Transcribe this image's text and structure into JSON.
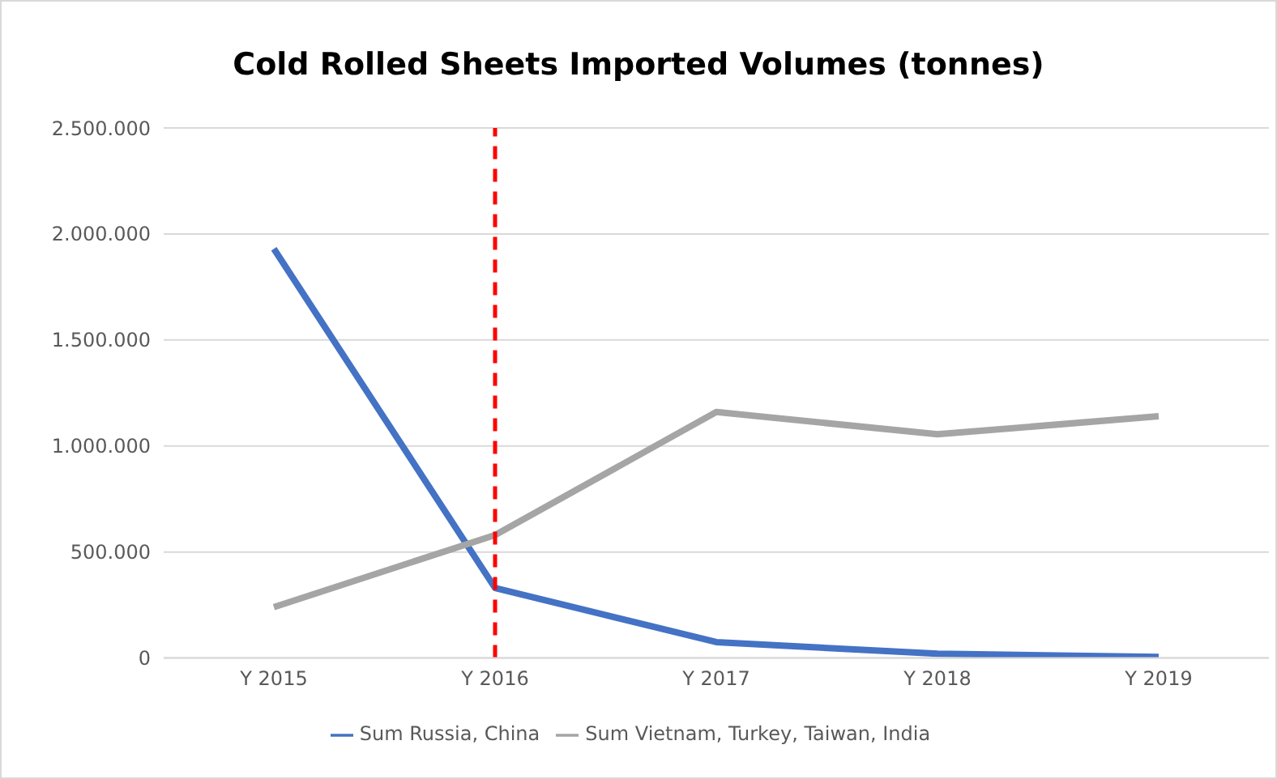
{
  "chart_data": {
    "type": "line",
    "title": "Cold Rolled Sheets Imported Volumes (tonnes)",
    "categories": [
      "Y 2015",
      "Y 2016",
      "Y 2017",
      "Y 2018",
      "Y 2019"
    ],
    "series": [
      {
        "name": "Sum Russia, China",
        "color": "#4472c4",
        "values": [
          1930000,
          330000,
          75000,
          20000,
          5000
        ]
      },
      {
        "name": "Sum Vietnam, Turkey, Taiwan, India",
        "color": "#a5a5a5",
        "values": [
          240000,
          580000,
          1160000,
          1055000,
          1140000
        ]
      }
    ],
    "ylim": [
      0,
      2500000
    ],
    "yticks": [
      {
        "value": 0,
        "label": "0"
      },
      {
        "value": 500000,
        "label": "500.000"
      },
      {
        "value": 1000000,
        "label": "1.000.000"
      },
      {
        "value": 1500000,
        "label": "1.500.000"
      },
      {
        "value": 2000000,
        "label": "2.000.000"
      },
      {
        "value": 2500000,
        "label": "2.500.000"
      }
    ],
    "grid": "y",
    "legend": "bottom",
    "marker": "none",
    "ref_lines": [
      {
        "axis": "x",
        "value": "Y 2016",
        "color": "#ff0000",
        "line_style": "dashed"
      }
    ]
  }
}
